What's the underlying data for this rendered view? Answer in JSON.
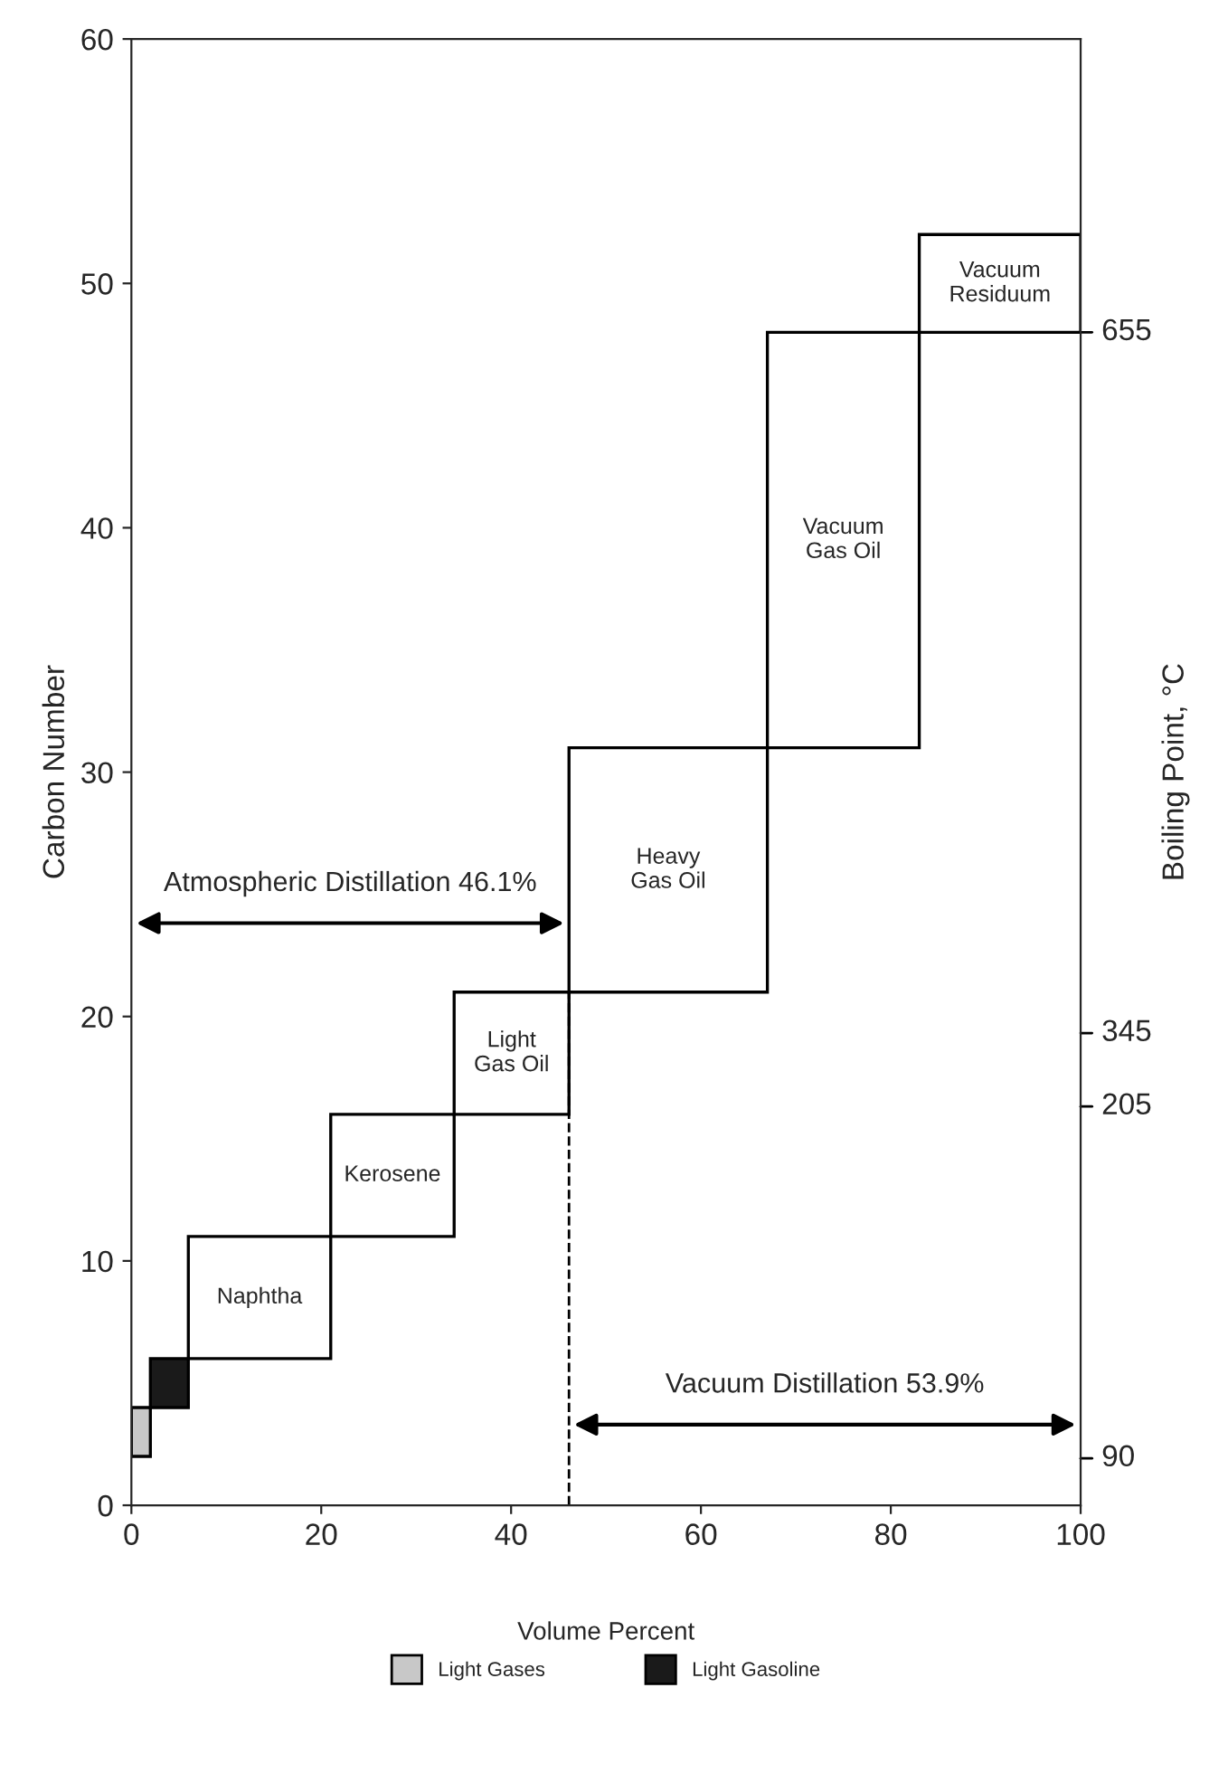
{
  "chart_data": {
    "type": "bar",
    "xlabel": "Volume Percent",
    "ylabel": "Carbon Number",
    "y2label": "Boiling Point, °C",
    "series": [
      {
        "name": "Light Gases",
        "color": "#c8c8c8",
        "x": [
          1
        ],
        "base": [
          2
        ],
        "values": [
          2
        ]
      },
      {
        "name": "Light Gasoline",
        "color": "#1a1a1a",
        "x": [
          4
        ],
        "base": [
          4
        ],
        "values": [
          2
        ]
      },
      {
        "name": "Naphtha",
        "color": "#ffffff",
        "x": [
          13.5
        ],
        "base": [
          6
        ],
        "values": [
          5
        ]
      },
      {
        "name": "Kerosene",
        "color": "#ffffff",
        "x": [
          27.5
        ],
        "base": [
          11
        ],
        "values": [
          5
        ]
      },
      {
        "name": "Light\nGas Oil",
        "color": "#ffffff",
        "x": [
          40.05
        ],
        "base": [
          16
        ],
        "values": [
          5
        ]
      },
      {
        "name": "Heavy\nGas Oil",
        "color": "#ffffff",
        "x": [
          56.55
        ],
        "base": [
          21
        ],
        "values": [
          10
        ]
      },
      {
        "name": "Vacuum\nGas Oil",
        "color": "#ffffff",
        "x": [
          75
        ],
        "base": [
          31
        ],
        "values": [
          17
        ]
      },
      {
        "name": "Vacuum\nResiduum",
        "color": "#ffffff",
        "x": [
          91.5
        ],
        "base": [
          48
        ],
        "values": [
          4
        ]
      }
    ],
    "xlim": [
      0,
      100
    ],
    "xticks": [
      0,
      20,
      40,
      60,
      80,
      100
    ],
    "ylim": [
      0,
      60
    ],
    "yticks": [
      0,
      10,
      20,
      30,
      40,
      50,
      60
    ],
    "annotations": [
      "Atmospheric Distillation 46.1%",
      "Vacuum Distillation 53.9%",
      "90",
      "205",
      "345",
      "655"
    ],
    "ref_lines": [
      {
        "axis": "x",
        "value": 46.1,
        "line_style": "dashed",
        "color": "#000000"
      }
    ],
    "legend": "bottom"
  }
}
